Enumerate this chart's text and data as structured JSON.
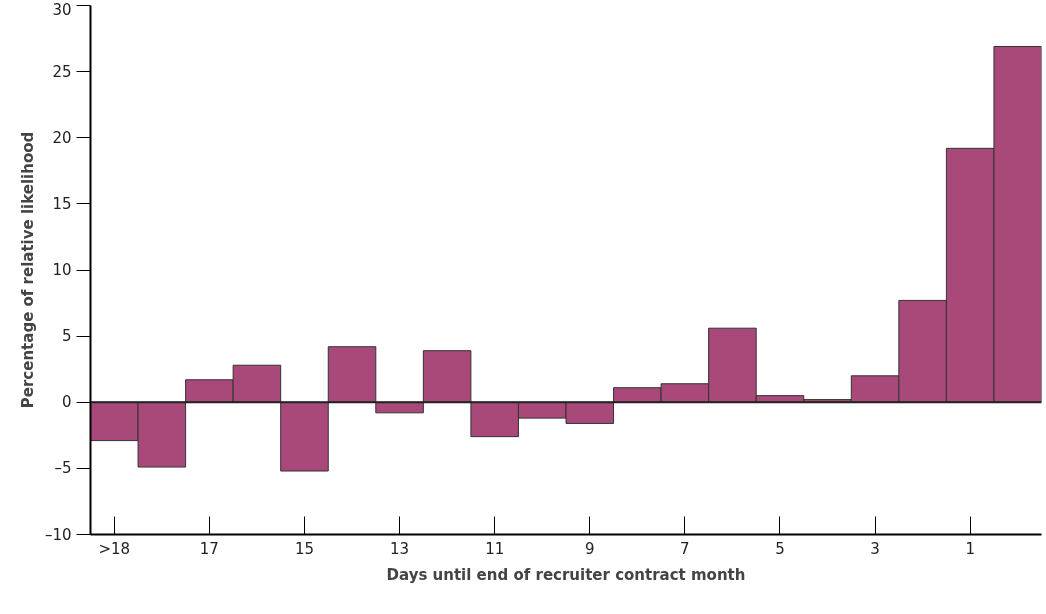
{
  "chart_data": {
    "type": "bar",
    "xlabel": "Days until end of recruiter contract month",
    "ylabel": "Percentage of relative likelihood",
    "categories": [
      ">18",
      null,
      "17",
      null,
      "15",
      null,
      "13",
      null,
      "11",
      null,
      "9",
      null,
      "7",
      null,
      "5",
      null,
      "3",
      null,
      "1",
      null
    ],
    "values": [
      -2.9,
      -4.9,
      1.7,
      2.8,
      -5.2,
      4.2,
      -0.8,
      3.9,
      -2.6,
      -1.2,
      -1.6,
      1.1,
      1.4,
      5.6,
      0.5,
      0.2,
      2.0,
      7.7,
      19.2,
      26.9
    ],
    "color": "#a8497a",
    "ylim": [
      -10,
      30
    ],
    "yticks": [
      {
        "value": -10,
        "label": "–10"
      },
      {
        "value": -5,
        "label": "–5"
      },
      0,
      5,
      10,
      15,
      20,
      25,
      30
    ],
    "ref_lines": [
      {
        "axis": "y",
        "value": 0,
        "color": "#222222"
      }
    ]
  }
}
